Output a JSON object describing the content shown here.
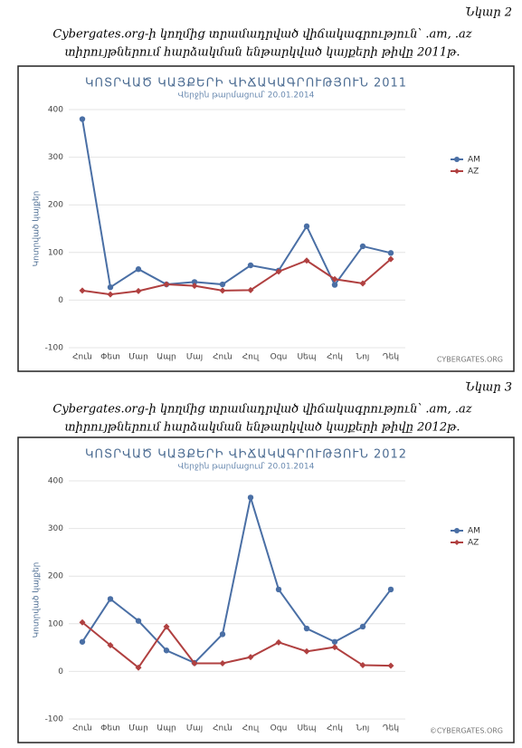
{
  "figures": [
    {
      "label": "Նկար 2",
      "caption": [
        "Cybergates.org-ի կողմից տրամադրված վիճակագրություն՝ .am, .az",
        "տիրույթներում հարձակման ենթարկված կայքերի թիվը 2011թ."
      ]
    },
    {
      "label": "Նկար 3",
      "caption": [
        "Cybergates.org-ի կողմից տրամադրված վիճակագրություն՝ .am, .az",
        "տիրույթներում հարձակման ենթարկված կայքերի թիվը 2012թ."
      ]
    }
  ],
  "chart_data": [
    {
      "type": "line",
      "title": "ԿՈՏՐՎԱԾ ԿԱՅՔԵՐԻ ՎԻՃԱԿԱԳՐՈՒԹՅՈՒՆ 2011",
      "subtitle": "Վերջին թարմացում՝ 20.01.2014",
      "y_label": "Կոտրված կայքեր",
      "categories": [
        "Հուն",
        "Փետ",
        "Մար",
        "Ապր",
        "Մայ",
        "Հուն",
        "Հուլ",
        "Օգս",
        "Սեպ",
        "Հոկ",
        "Նոյ",
        "Դեկ"
      ],
      "series": [
        {
          "name": "AM",
          "color": "#4a6fa5",
          "marker": "circle",
          "values": [
            380,
            27,
            65,
            33,
            38,
            33,
            73,
            62,
            155,
            32,
            113,
            99
          ]
        },
        {
          "name": "AZ",
          "color": "#b04040",
          "marker": "diamond",
          "values": [
            20,
            12,
            19,
            33,
            30,
            20,
            21,
            60,
            83,
            44,
            35,
            86
          ]
        }
      ],
      "ylim": [
        -100,
        400
      ],
      "yticks": [
        -100,
        0,
        100,
        200,
        300,
        400
      ],
      "grid": true,
      "credit": "CYBERGATES.ORG"
    },
    {
      "type": "line",
      "title": "ԿՈՏՐՎԱԾ ԿԱՅՔԵՐԻ ՎԻՃԱԿԱԳՐՈՒԹՅՈՒՆ 2012",
      "subtitle": "Վերջին թարմացում՝ 20.01.2014",
      "y_label": "Կոտրված կայքեր",
      "categories": [
        "Հուն",
        "Փետ",
        "Մար",
        "Ապր",
        "Մայ",
        "Հուն",
        "Հուլ",
        "Օգս",
        "Սեպ",
        "Հոկ",
        "Նոյ",
        "Դեկ"
      ],
      "series": [
        {
          "name": "AM",
          "color": "#4a6fa5",
          "marker": "circle",
          "values": [
            62,
            152,
            106,
            44,
            18,
            78,
            365,
            172,
            90,
            62,
            94,
            172
          ]
        },
        {
          "name": "AZ",
          "color": "#b04040",
          "marker": "diamond",
          "values": [
            103,
            55,
            8,
            94,
            17,
            17,
            30,
            61,
            42,
            51,
            13,
            12
          ]
        }
      ],
      "ylim": [
        -100,
        400
      ],
      "yticks": [
        -100,
        0,
        100,
        200,
        300,
        400
      ],
      "grid": true,
      "credit": "©CYBERGATES.ORG"
    }
  ]
}
